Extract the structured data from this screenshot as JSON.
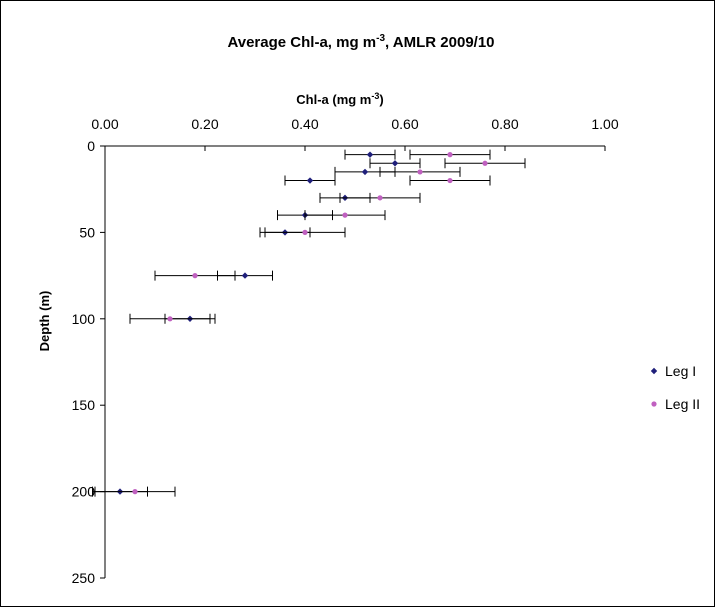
{
  "chart_data": {
    "type": "scatter",
    "title": "Average Chl-a, mg m",
    "title_sup": "-3",
    "title_suffix": ", AMLR 2009/10",
    "xlabel": "Chl-a (mg m",
    "xlabel_sup": "-3",
    "xlabel_suffix": ")",
    "ylabel": "Depth (m)",
    "xlim": [
      0,
      1
    ],
    "ylim": [
      0,
      250
    ],
    "y_inverted": true,
    "x_axis_position": "top",
    "xticks": [
      "0.00",
      "0.20",
      "0.40",
      "0.60",
      "0.80",
      "1.00"
    ],
    "yticks": [
      "0",
      "50",
      "100",
      "150",
      "200",
      "250"
    ],
    "grid": false,
    "legend_position": "right",
    "series": [
      {
        "name": "Leg I",
        "color": "#1f1f7a",
        "marker": "diamond",
        "points": [
          {
            "x": 0.53,
            "y": 5,
            "err": 0.05
          },
          {
            "x": 0.58,
            "y": 10,
            "err": 0.05
          },
          {
            "x": 0.52,
            "y": 15,
            "err": 0.06
          },
          {
            "x": 0.41,
            "y": 20,
            "err": 0.05
          },
          {
            "x": 0.48,
            "y": 30,
            "err": 0.05
          },
          {
            "x": 0.4,
            "y": 40,
            "err": 0.055
          },
          {
            "x": 0.36,
            "y": 50,
            "err": 0.05
          },
          {
            "x": 0.28,
            "y": 75,
            "err": 0.055
          },
          {
            "x": 0.17,
            "y": 100,
            "err": 0.05
          },
          {
            "x": 0.03,
            "y": 200,
            "err": 0.055
          }
        ]
      },
      {
        "name": "Leg II",
        "color": "#c060c0",
        "marker": "circle",
        "points": [
          {
            "x": 0.69,
            "y": 5,
            "err": 0.08
          },
          {
            "x": 0.76,
            "y": 10,
            "err": 0.08
          },
          {
            "x": 0.63,
            "y": 15,
            "err": 0.08
          },
          {
            "x": 0.69,
            "y": 20,
            "err": 0.08
          },
          {
            "x": 0.55,
            "y": 30,
            "err": 0.08
          },
          {
            "x": 0.48,
            "y": 40,
            "err": 0.08
          },
          {
            "x": 0.4,
            "y": 50,
            "err": 0.08
          },
          {
            "x": 0.18,
            "y": 75,
            "err": 0.08
          },
          {
            "x": 0.13,
            "y": 100,
            "err": 0.08
          },
          {
            "x": 0.06,
            "y": 200,
            "err": 0.08
          }
        ]
      }
    ]
  }
}
